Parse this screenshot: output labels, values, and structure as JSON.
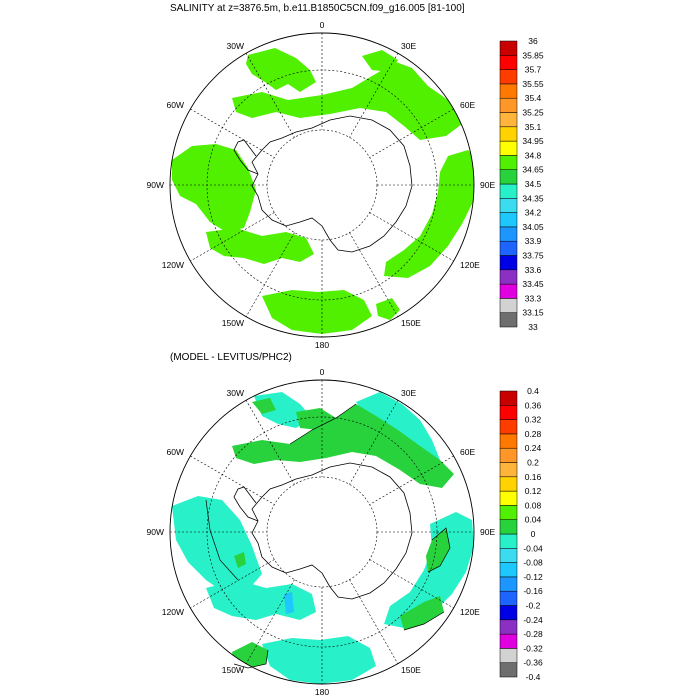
{
  "panel_top": {
    "title": "SALINITY at z=3876.5m, b.e11.B1850C5CN.f09_g16.005 [81-100]",
    "longitude_labels": {
      "n": "0",
      "ne30": "30E",
      "ne60": "60E",
      "e90": "90E",
      "se120": "120E",
      "se150": "150E",
      "s": "180",
      "sw150": "150W",
      "sw120": "120W",
      "w90": "90W",
      "nw60": "60W",
      "nw30": "30W"
    },
    "colorbar": {
      "colors": [
        "#6e6e6e",
        "#d2d2d2",
        "#e000e0",
        "#8c2fc4",
        "#0000e6",
        "#1e64ff",
        "#1e96ff",
        "#1ec8ff",
        "#3cdcf0",
        "#28f0c8",
        "#28d23c",
        "#50f000",
        "#ffff00",
        "#ffd200",
        "#ffb43c",
        "#ff9628",
        "#ff7800",
        "#ff3c00",
        "#ff0000",
        "#c80000"
      ],
      "labels": [
        "33",
        "33.15",
        "33.3",
        "33.45",
        "33.6",
        "33.75",
        "33.9",
        "34.05",
        "34.2",
        "34.35",
        "34.5",
        "34.65",
        "34.8",
        "34.95",
        "35.1",
        "35.25",
        "35.4",
        "35.55",
        "35.7",
        "35.85",
        "36"
      ]
    },
    "fill_color": "#50f000"
  },
  "panel_bottom": {
    "title": "(MODEL - LEVITUS/PHC2)",
    "longitude_labels": {
      "n": "0",
      "ne30": "30E",
      "ne60": "60E",
      "e90": "90E",
      "se120": "120E",
      "se150": "150E",
      "s": "180",
      "sw150": "150W",
      "sw120": "120W",
      "w90": "90W",
      "nw60": "60W",
      "nw30": "30W"
    },
    "colorbar": {
      "colors": [
        "#6e6e6e",
        "#d2d2d2",
        "#e000e0",
        "#8c2fc4",
        "#0000e6",
        "#1e64ff",
        "#1e96ff",
        "#1ec8ff",
        "#3cdcf0",
        "#28f0c8",
        "#28d23c",
        "#50f000",
        "#ffff00",
        "#ffd200",
        "#ffb43c",
        "#ff9628",
        "#ff7800",
        "#ff3c00",
        "#ff0000",
        "#c80000"
      ],
      "labels": [
        "-0.4",
        "-0.36",
        "-0.32",
        "-0.28",
        "-0.24",
        "-0.2",
        "-0.16",
        "-0.12",
        "-0.08",
        "-0.04",
        "0",
        "0.04",
        "0.08",
        "0.12",
        "0.16",
        "0.2",
        "0.24",
        "0.28",
        "0.32",
        "0.36",
        "0.4"
      ]
    },
    "positive_color": "#28d23c",
    "negative_color": "#28f0c8"
  }
}
